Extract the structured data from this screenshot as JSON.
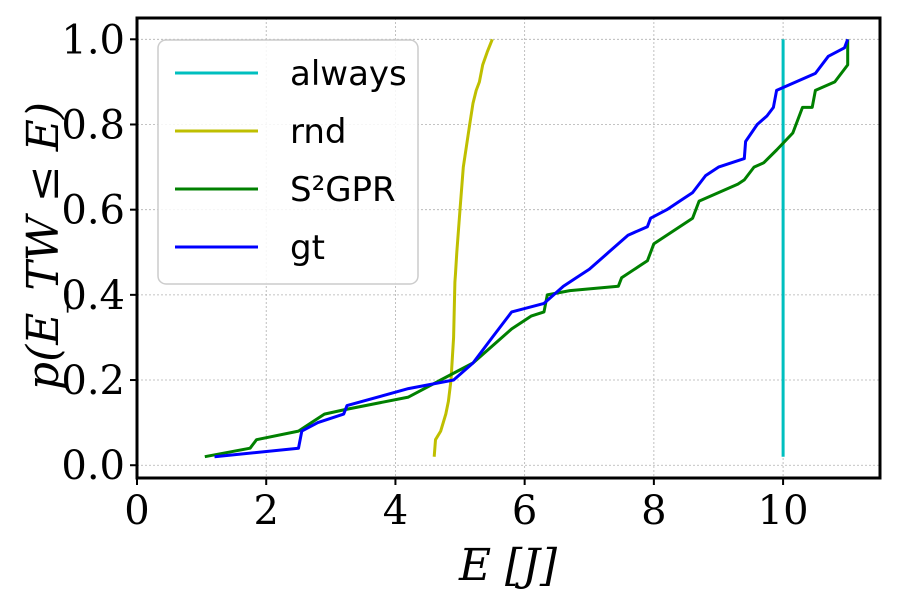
{
  "chart_data": {
    "type": "line",
    "title": "",
    "xlabel": "E [J]",
    "ylabel": "p(E_TW ≤ E)",
    "xlim": [
      0,
      11.5
    ],
    "ylim": [
      -0.03,
      1.05
    ],
    "xticks": [
      0,
      2,
      4,
      6,
      8,
      10
    ],
    "xtick_labels": [
      "0",
      "2",
      "4",
      "6",
      "8",
      "10"
    ],
    "yticks": [
      0.0,
      0.2,
      0.4,
      0.6,
      0.8,
      1.0
    ],
    "ytick_labels": [
      "0.0",
      "0.2",
      "0.4",
      "0.6",
      "0.8",
      "1.0"
    ],
    "grid": true,
    "legend": "top-left",
    "series": [
      {
        "name": "always",
        "color": "#00bfbf",
        "x": [
          10.0,
          10.0
        ],
        "y": [
          0.02,
          1.0
        ]
      },
      {
        "name": "rnd",
        "color": "#bfbf00",
        "x": [
          4.6,
          4.62,
          4.7,
          4.78,
          4.82,
          4.86,
          4.9,
          4.92,
          4.93,
          4.95,
          5.0,
          5.05,
          5.1,
          5.15,
          5.2,
          5.25,
          5.3,
          5.35,
          5.42,
          5.5
        ],
        "y": [
          0.02,
          0.06,
          0.08,
          0.12,
          0.15,
          0.2,
          0.3,
          0.43,
          0.45,
          0.5,
          0.6,
          0.7,
          0.75,
          0.8,
          0.85,
          0.88,
          0.9,
          0.94,
          0.97,
          1.0
        ]
      },
      {
        "name": "S²GPR",
        "color": "#008000",
        "x": [
          1.05,
          1.75,
          1.85,
          2.5,
          2.7,
          2.9,
          3.2,
          4.2,
          4.45,
          4.7,
          5.2,
          5.5,
          5.8,
          6.1,
          6.3,
          6.35,
          6.7,
          7.45,
          7.5,
          7.8,
          7.9,
          8.0,
          8.4,
          8.6,
          8.7,
          9.0,
          9.3,
          9.4,
          9.55,
          9.7,
          9.9,
          10.15,
          10.3,
          10.45,
          10.5,
          10.8,
          11.0,
          11.0
        ],
        "y": [
          0.02,
          0.04,
          0.06,
          0.08,
          0.1,
          0.12,
          0.13,
          0.16,
          0.18,
          0.2,
          0.24,
          0.28,
          0.32,
          0.35,
          0.36,
          0.4,
          0.41,
          0.42,
          0.44,
          0.47,
          0.48,
          0.52,
          0.56,
          0.58,
          0.62,
          0.64,
          0.66,
          0.67,
          0.7,
          0.71,
          0.74,
          0.78,
          0.84,
          0.84,
          0.88,
          0.9,
          0.94,
          1.0
        ]
      },
      {
        "name": "gt",
        "color": "#0000ff",
        "x": [
          1.2,
          2.5,
          2.55,
          2.8,
          3.2,
          3.25,
          4.2,
          4.9,
          5.2,
          5.5,
          5.8,
          6.3,
          6.6,
          6.8,
          7.0,
          7.3,
          7.45,
          7.6,
          7.9,
          7.95,
          8.2,
          8.4,
          8.6,
          8.8,
          9.0,
          9.4,
          9.42,
          9.6,
          9.75,
          9.85,
          9.9,
          10.2,
          10.5,
          10.7,
          10.95,
          11.0
        ],
        "y": [
          0.02,
          0.04,
          0.08,
          0.1,
          0.12,
          0.14,
          0.18,
          0.2,
          0.24,
          0.3,
          0.36,
          0.38,
          0.42,
          0.44,
          0.46,
          0.5,
          0.52,
          0.54,
          0.56,
          0.58,
          0.6,
          0.62,
          0.64,
          0.68,
          0.7,
          0.72,
          0.76,
          0.8,
          0.82,
          0.84,
          0.88,
          0.9,
          0.92,
          0.96,
          0.98,
          1.0
        ]
      }
    ]
  }
}
